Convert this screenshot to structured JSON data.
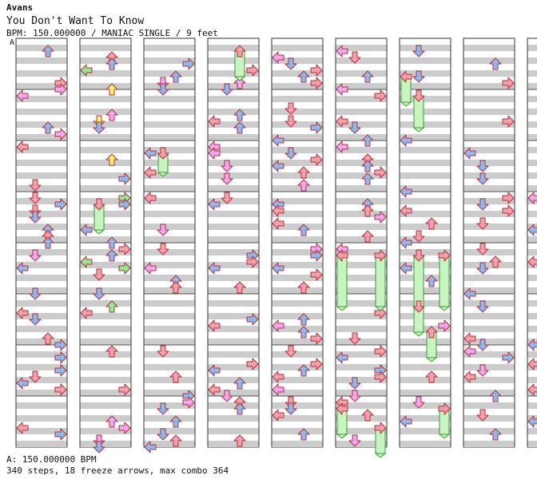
{
  "song": {
    "artist": "Avans",
    "title": "You Don't Want To Know",
    "info": "BPM: 150.000000 / MANIAC SINGLE / 9 feet",
    "section_marker": "A"
  },
  "footer": {
    "bpm_line": "A: 150.000000 BPM",
    "stats_line": "340 steps, 18 freeze arrows, max combo 364"
  },
  "colors": {
    "quarter": "#f4a0a8",
    "eighth": "#8fb8ec",
    "sixteenth": "#f0a8f0",
    "twelfth": "#90ec90",
    "twentyfourth": "#f4f070",
    "freeze": "#c8f4c0",
    "stripe": "#cccccc"
  },
  "chart_data": {
    "type": "step-chart",
    "columns": 9,
    "measures_per_column": 8,
    "lanes": [
      "left",
      "down",
      "up",
      "right"
    ]
  }
}
